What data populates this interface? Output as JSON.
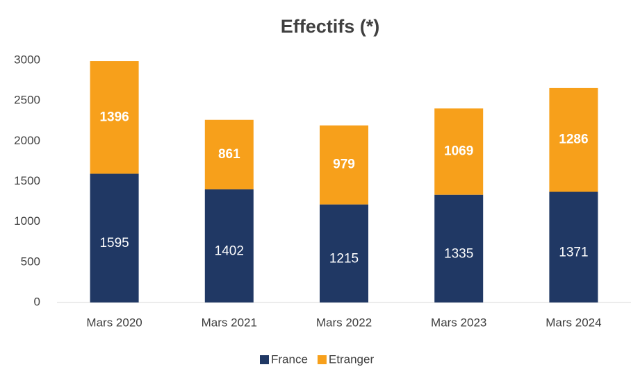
{
  "chart_data": {
    "type": "bar",
    "stacked": true,
    "title": "Effectifs (*)",
    "categories": [
      "Mars 2020",
      "Mars 2021",
      "Mars 2022",
      "Mars 2023",
      "Mars 2024"
    ],
    "series": [
      {
        "name": "France",
        "color": "#203864",
        "values": [
          1595,
          1402,
          1215,
          1335,
          1371
        ]
      },
      {
        "name": "Etranger",
        "color": "#f7a01b",
        "values": [
          1396,
          861,
          979,
          1069,
          1286
        ]
      }
    ],
    "ylim": [
      0,
      3000
    ],
    "yticks": [
      0,
      500,
      1000,
      1500,
      2000,
      2500,
      3000
    ],
    "grid": false,
    "legend": "bottom"
  }
}
